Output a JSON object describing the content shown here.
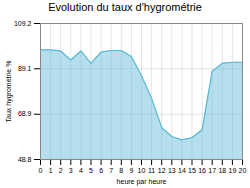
{
  "chart_data": {
    "type": "area",
    "title": "Evolution du taux d'hygrométrie",
    "xlabel": "heure par heure",
    "ylabel": "Taux hygrométrie %",
    "x": [
      0,
      1,
      2,
      3,
      4,
      5,
      6,
      7,
      8,
      9,
      10,
      11,
      12,
      13,
      14,
      15,
      16,
      17,
      18,
      19,
      20
    ],
    "values": [
      97.5,
      97.5,
      97.0,
      93.0,
      97.0,
      91.5,
      96.5,
      97.2,
      97.2,
      94.5,
      86.0,
      76.0,
      63.0,
      59.0,
      57.5,
      58.5,
      62.0,
      88.0,
      91.5,
      92.0,
      92.0
    ],
    "color": "#5bb8d4",
    "xlim": [
      0,
      20
    ],
    "xticks": [
      0,
      1,
      2,
      3,
      4,
      5,
      6,
      7,
      8,
      9,
      10,
      11,
      12,
      13,
      14,
      15,
      16,
      17,
      18,
      19,
      20
    ],
    "ylim": [
      48.8,
      109.2
    ],
    "yticks": [
      48.8,
      68.9,
      89.1,
      109.2
    ],
    "grid": true
  }
}
